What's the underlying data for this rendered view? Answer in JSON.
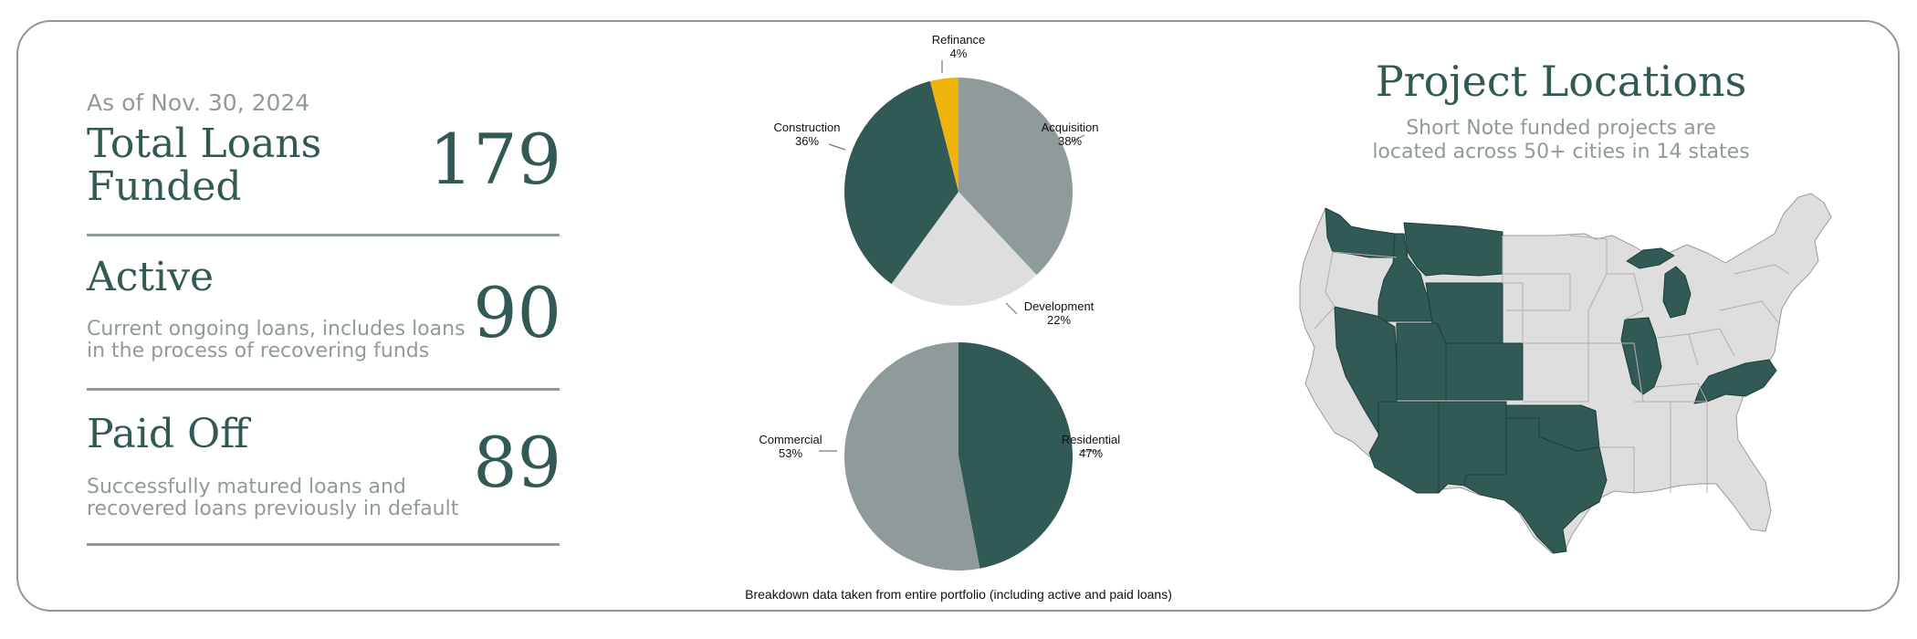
{
  "stats": {
    "as_of": "As of Nov. 30, 2024",
    "total": {
      "title": "Total Loans Funded",
      "value": "179"
    },
    "active": {
      "title": "Active",
      "desc_line1": "Current ongoing loans, includes loans",
      "desc_line2": "in the process of recovering funds",
      "value": "90"
    },
    "paid": {
      "title": "Paid Off",
      "desc_line1": "Successfully matured loans and",
      "desc_line2": "recovered loans previously in default",
      "value": "89"
    }
  },
  "caption": "Breakdown data taken from entire portfolio (including active and paid loans)",
  "locations": {
    "title": "Project Locations",
    "subtitle_line1": "Short Note funded projects are",
    "subtitle_line2": "located across 50+ cities in 14 states"
  },
  "colors": {
    "dark": "#315a55",
    "gray": "#8e9b9a",
    "light": "#dedede",
    "gold": "#f0b30b"
  },
  "chart_data": [
    {
      "type": "pie",
      "slices": [
        {
          "label": "Acquisition",
          "value": 38,
          "pct": "38%",
          "color": "#8e9b9a"
        },
        {
          "label": "Development",
          "value": 22,
          "pct": "22%",
          "color": "#dedede"
        },
        {
          "label": "Construction",
          "value": 36,
          "pct": "36%",
          "color": "#315a55"
        },
        {
          "label": "Refinance",
          "value": 4,
          "pct": "4%",
          "color": "#f0b30b"
        }
      ]
    },
    {
      "type": "pie",
      "slices": [
        {
          "label": "Residential",
          "value": 47,
          "pct": "47%",
          "color": "#315a55"
        },
        {
          "label": "Commercial",
          "value": 53,
          "pct": "53%",
          "color": "#8e9b9a"
        }
      ]
    }
  ]
}
